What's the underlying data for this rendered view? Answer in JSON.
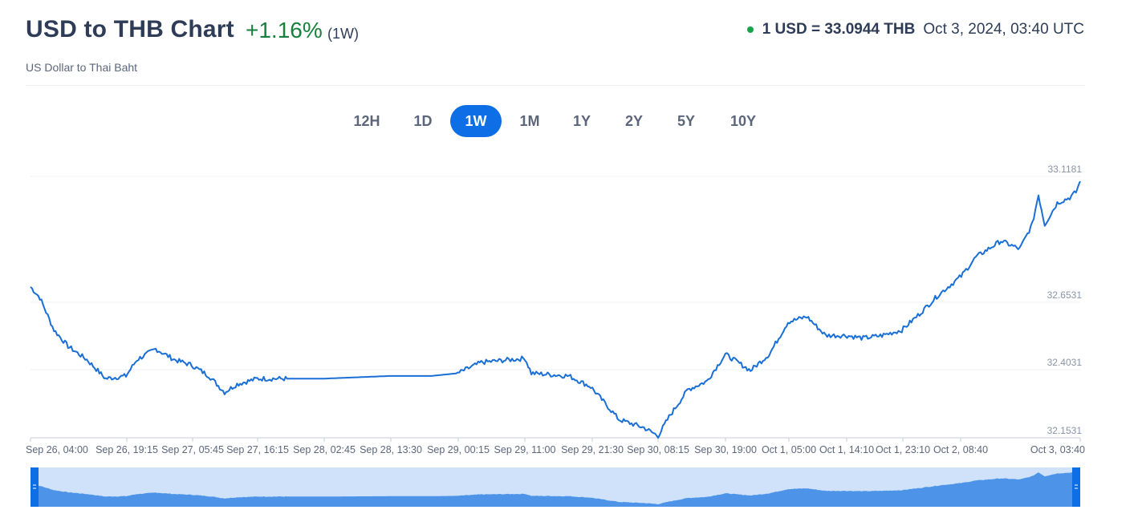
{
  "header": {
    "title": "USD to THB Chart",
    "change": "+1.16%",
    "period": "(1W)",
    "subtitle": "US Dollar to Thai Baht",
    "rate_text": "1 USD = 33.0944 THB",
    "timestamp": "Oct 3, 2024, 03:40 UTC",
    "status_color": "#16a34a"
  },
  "tabs": [
    {
      "label": "12H",
      "active": false
    },
    {
      "label": "1D",
      "active": false
    },
    {
      "label": "1W",
      "active": true
    },
    {
      "label": "1M",
      "active": false
    },
    {
      "label": "1Y",
      "active": false
    },
    {
      "label": "2Y",
      "active": false
    },
    {
      "label": "5Y",
      "active": false
    },
    {
      "label": "10Y",
      "active": false
    }
  ],
  "colors": {
    "line": "#1a6fd6",
    "navigator_fill": "#4d94e8",
    "navigator_bg": "#cfe2fa",
    "navigator_handle": "#0e6ee6",
    "active_tab": "#0e6ee6",
    "up": "#16803c"
  },
  "chart_data": {
    "type": "line",
    "title": "",
    "xlabel": "",
    "ylabel": "",
    "x_tick_labels": [
      "Sep 26, 04:00",
      "Sep 26, 19:15",
      "Sep 27, 05:45",
      "Sep 27, 16:15",
      "Sep 28, 02:45",
      "Sep 28, 13:30",
      "Sep 29, 00:15",
      "Sep 29, 11:00",
      "Sep 29, 21:30",
      "Sep 30, 08:15",
      "Sep 30, 19:00",
      "Oct 1, 05:00",
      "Oct 1, 14:10",
      "Oct 1, 23:10",
      "Oct 2, 08:40",
      "Oct 3, 03:40"
    ],
    "y_tick_labels": [
      "33.1181",
      "32.6531",
      "32.4031",
      "32.1531"
    ],
    "y_ticks": [
      33.1181,
      32.6531,
      32.4031,
      32.1531
    ],
    "ylim": [
      32.1531,
      33.1181
    ],
    "grid": "horizontal",
    "series": [
      {
        "name": "",
        "x": [
          "Sep 26, 04:00",
          "Sep 26, 05:30",
          "Sep 26, 07:45",
          "Sep 26, 10:00",
          "Sep 26, 13:00",
          "Sep 26, 16:00",
          "Sep 26, 19:15",
          "Sep 26, 21:00",
          "Sep 27, 00:00",
          "Sep 27, 03:00",
          "Sep 27, 05:45",
          "Sep 27, 08:30",
          "Sep 27, 11:00",
          "Sep 27, 13:00",
          "Sep 27, 16:15",
          "Sep 27, 18:00",
          "Sep 27, 21:00",
          "Sep 28, 02:45",
          "Sep 28, 13:30",
          "Sep 28, 20:00",
          "Sep 29, 00:15",
          "Sep 29, 04:00",
          "Sep 29, 11:00",
          "Sep 29, 12:00",
          "Sep 29, 18:00",
          "Sep 29, 21:30",
          "Sep 30, 02:00",
          "Sep 30, 06:00",
          "Sep 30, 08:15",
          "Sep 30, 10:00",
          "Sep 30, 13:00",
          "Sep 30, 16:00",
          "Sep 30, 19:00",
          "Sep 30, 23:00",
          "Oct 1, 02:00",
          "Oct 1, 05:00",
          "Oct 1, 08:00",
          "Oct 1, 11:00",
          "Oct 1, 14:10",
          "Oct 1, 17:00",
          "Oct 1, 20:00",
          "Oct 1, 23:10",
          "Oct 2, 02:00",
          "Oct 2, 05:00",
          "Oct 2, 08:40",
          "Oct 2, 11:00",
          "Oct 2, 15:00",
          "Oct 2, 18:00",
          "Oct 2, 20:00",
          "Oct 2, 21:00",
          "Oct 2, 22:00",
          "Oct 3, 00:00",
          "Oct 3, 02:00",
          "Oct 3, 03:00",
          "Oct 3, 03:40"
        ],
        "values": [
          32.71,
          32.67,
          32.55,
          32.49,
          32.44,
          32.37,
          32.38,
          32.44,
          32.48,
          32.44,
          32.42,
          32.38,
          32.32,
          32.35,
          32.37,
          32.37,
          32.37,
          32.37,
          32.38,
          32.38,
          32.39,
          32.43,
          32.445,
          32.39,
          32.38,
          32.34,
          32.22,
          32.19,
          32.16,
          32.23,
          32.33,
          32.36,
          32.46,
          32.4,
          32.46,
          32.58,
          32.6,
          32.53,
          32.53,
          32.52,
          32.53,
          32.55,
          32.61,
          32.68,
          32.75,
          32.82,
          32.88,
          32.85,
          32.94,
          33.05,
          32.94,
          33.02,
          33.04,
          33.06,
          33.1
        ]
      }
    ]
  }
}
